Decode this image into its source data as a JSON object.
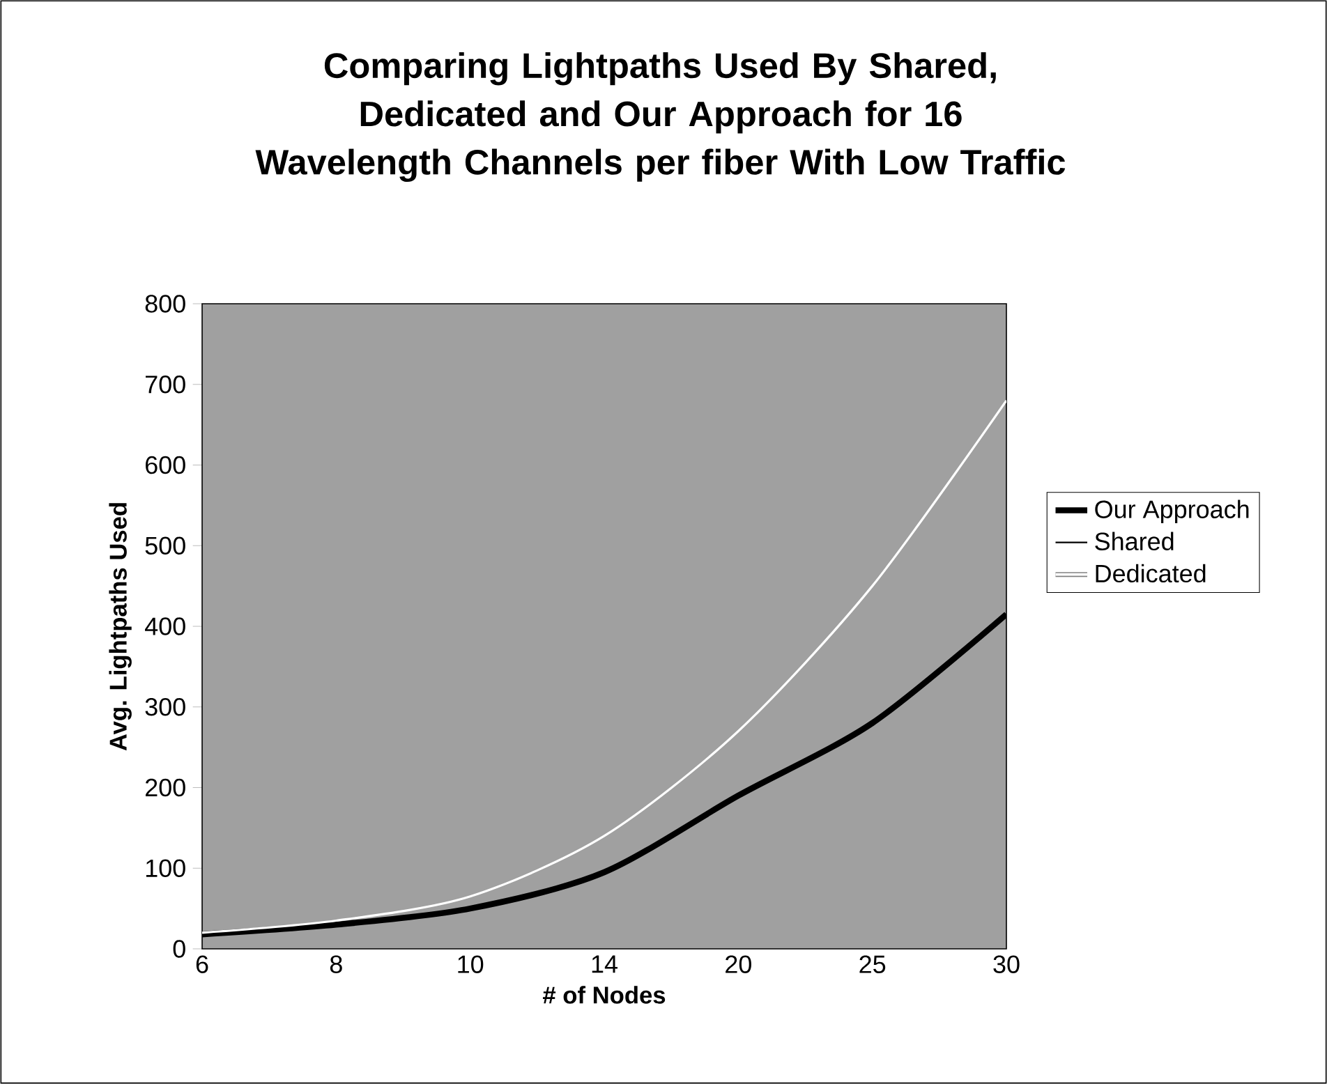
{
  "chart_data": {
    "type": "line",
    "title": "Comparing Lightpaths Used By Shared, Dedicated and Our Approach for 16 Wavelength Channels per fiber With Low Traffic",
    "xlabel": "# of Nodes",
    "ylabel": "Avg. Lightpaths Used",
    "categories": [
      "6",
      "8",
      "10",
      "14",
      "20",
      "25",
      "30"
    ],
    "series": [
      {
        "name": "Our Approach",
        "color": "#000000",
        "values": [
          18,
          30,
          50,
          95,
          190,
          280,
          415
        ]
      },
      {
        "name": "Shared",
        "color": "#000000",
        "values": [
          null,
          null,
          null,
          null,
          null,
          null,
          null
        ]
      },
      {
        "name": "Dedicated",
        "color": "#ffffff",
        "values": [
          20,
          35,
          65,
          140,
          270,
          450,
          680
        ]
      }
    ],
    "ylim": [
      0,
      800
    ],
    "yticks": [
      0,
      100,
      200,
      300,
      400,
      500,
      600,
      700,
      800
    ],
    "grid": false,
    "legend": "right",
    "marker": "none",
    "line_style": "solid"
  }
}
